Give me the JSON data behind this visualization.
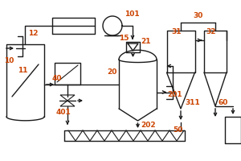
{
  "bg_color": "#ffffff",
  "line_color": "#1a1a1a",
  "label_color": "#cc4400",
  "fig_width": 3.0,
  "fig_height": 2.0,
  "dpi": 100
}
